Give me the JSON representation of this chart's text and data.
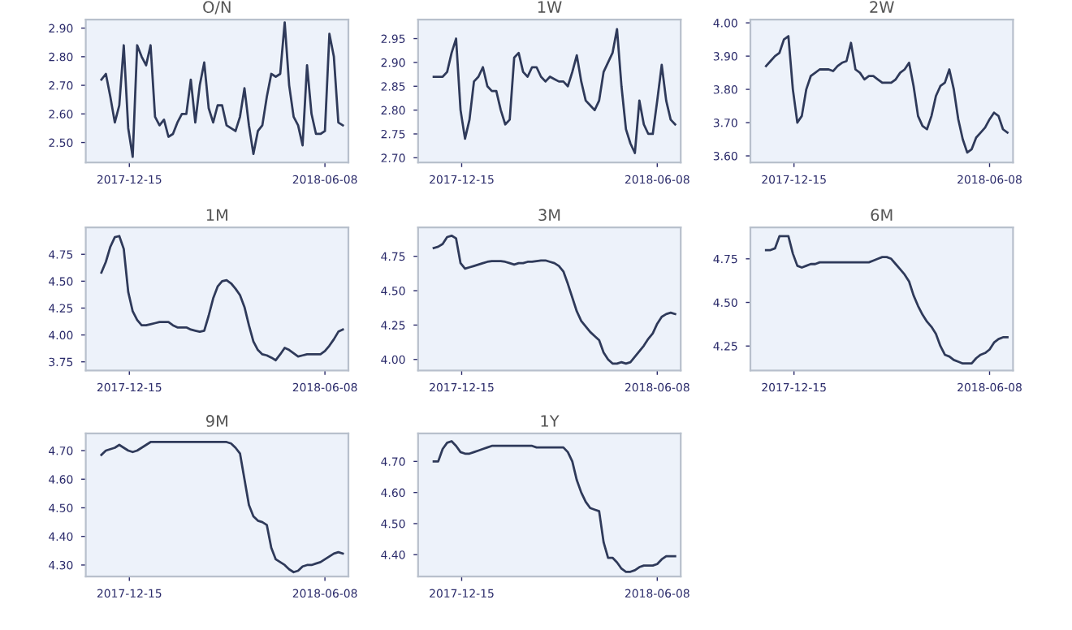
{
  "chart_data": [
    {
      "type": "line",
      "title": "O/N",
      "x": [
        "2017-11-20",
        "2017-11-24",
        "2017-11-28",
        "2017-12-02",
        "2017-12-06",
        "2017-12-10",
        "2017-12-14",
        "2017-12-18",
        "2017-12-22",
        "2017-12-26",
        "2017-12-30",
        "2018-01-03",
        "2018-01-07",
        "2018-01-11",
        "2018-01-15",
        "2018-01-19",
        "2018-01-23",
        "2018-01-27",
        "2018-01-31",
        "2018-02-04",
        "2018-02-08",
        "2018-02-12",
        "2018-02-16",
        "2018-02-20",
        "2018-02-24",
        "2018-02-28",
        "2018-03-04",
        "2018-03-08",
        "2018-03-12",
        "2018-03-16",
        "2018-03-20",
        "2018-03-24",
        "2018-03-28",
        "2018-04-01",
        "2018-04-05",
        "2018-04-09",
        "2018-04-13",
        "2018-04-17",
        "2018-04-21",
        "2018-04-25",
        "2018-04-29",
        "2018-05-03",
        "2018-05-07",
        "2018-05-11",
        "2018-05-15",
        "2018-05-19",
        "2018-05-23",
        "2018-05-27",
        "2018-05-31",
        "2018-06-04",
        "2018-06-08",
        "2018-06-12",
        "2018-06-16",
        "2018-06-20",
        "2018-06-24"
      ],
      "series": [
        {
          "color": "#2f3a5a",
          "values": [
            2.72,
            2.74,
            2.66,
            2.57,
            2.63,
            2.84,
            2.55,
            2.45,
            2.84,
            2.8,
            2.77,
            2.84,
            2.59,
            2.56,
            2.58,
            2.52,
            2.53,
            2.57,
            2.6,
            2.6,
            2.72,
            2.57,
            2.7,
            2.78,
            2.62,
            2.57,
            2.63,
            2.63,
            2.56,
            2.55,
            2.54,
            2.59,
            2.69,
            2.56,
            2.46,
            2.54,
            2.56,
            2.66,
            2.74,
            2.73,
            2.74,
            2.92,
            2.7,
            2.59,
            2.56,
            2.49,
            2.77,
            2.6,
            2.53,
            2.53,
            2.54,
            2.88,
            2.8,
            2.57,
            2.56
          ]
        }
      ],
      "xlim": [
        "2017-11-06",
        "2018-06-29"
      ],
      "xticks": [
        "2017-12-15",
        "2018-06-08"
      ],
      "ylim": [
        2.43,
        2.93
      ],
      "yticks": [
        {
          "value": 2.5,
          "label": "2.50"
        },
        {
          "value": 2.6,
          "label": "2.60"
        },
        {
          "value": 2.7,
          "label": "2.70"
        },
        {
          "value": 2.8,
          "label": "2.80"
        },
        {
          "value": 2.9,
          "label": "2.90"
        }
      ]
    },
    {
      "type": "line",
      "title": "1W",
      "x": [
        "2017-11-20",
        "2017-11-24",
        "2017-11-28",
        "2017-12-02",
        "2017-12-06",
        "2017-12-10",
        "2017-12-14",
        "2017-12-18",
        "2017-12-22",
        "2017-12-26",
        "2017-12-30",
        "2018-01-03",
        "2018-01-07",
        "2018-01-11",
        "2018-01-15",
        "2018-01-19",
        "2018-01-23",
        "2018-01-27",
        "2018-01-31",
        "2018-02-04",
        "2018-02-08",
        "2018-02-12",
        "2018-02-16",
        "2018-02-20",
        "2018-02-24",
        "2018-02-28",
        "2018-03-04",
        "2018-03-08",
        "2018-03-12",
        "2018-03-16",
        "2018-03-20",
        "2018-03-24",
        "2018-03-28",
        "2018-04-01",
        "2018-04-05",
        "2018-04-09",
        "2018-04-13",
        "2018-04-17",
        "2018-04-21",
        "2018-04-25",
        "2018-04-29",
        "2018-05-03",
        "2018-05-07",
        "2018-05-11",
        "2018-05-15",
        "2018-05-19",
        "2018-05-23",
        "2018-05-27",
        "2018-05-31",
        "2018-06-04",
        "2018-06-08",
        "2018-06-12",
        "2018-06-16",
        "2018-06-20",
        "2018-06-24"
      ],
      "series": [
        {
          "color": "#2f3a5a",
          "values": [
            2.87,
            2.87,
            2.87,
            2.88,
            2.92,
            2.95,
            2.8,
            2.74,
            2.78,
            2.86,
            2.87,
            2.89,
            2.85,
            2.84,
            2.84,
            2.8,
            2.77,
            2.78,
            2.91,
            2.92,
            2.88,
            2.87,
            2.89,
            2.89,
            2.87,
            2.86,
            2.87,
            2.865,
            2.86,
            2.86,
            2.85,
            2.88,
            2.915,
            2.86,
            2.82,
            2.81,
            2.8,
            2.82,
            2.88,
            2.9,
            2.92,
            2.97,
            2.85,
            2.76,
            2.73,
            2.71,
            2.82,
            2.77,
            2.75,
            2.75,
            2.82,
            2.895,
            2.82,
            2.78,
            2.77
          ]
        }
      ],
      "xlim": [
        "2017-11-06",
        "2018-06-29"
      ],
      "xticks": [
        "2017-12-15",
        "2018-06-08"
      ],
      "ylim": [
        2.69,
        2.99
      ],
      "yticks": [
        {
          "value": 2.7,
          "label": "2.70"
        },
        2.75,
        {
          "value": 2.8,
          "label": "2.80"
        },
        2.85,
        {
          "value": 2.9,
          "label": "2.90"
        },
        2.95
      ]
    },
    {
      "type": "line",
      "title": "2W",
      "x": [
        "2017-11-20",
        "2017-11-24",
        "2017-11-28",
        "2017-12-02",
        "2017-12-06",
        "2017-12-10",
        "2017-12-14",
        "2017-12-18",
        "2017-12-22",
        "2017-12-26",
        "2017-12-30",
        "2018-01-03",
        "2018-01-07",
        "2018-01-11",
        "2018-01-15",
        "2018-01-19",
        "2018-01-23",
        "2018-01-27",
        "2018-01-31",
        "2018-02-04",
        "2018-02-08",
        "2018-02-12",
        "2018-02-16",
        "2018-02-20",
        "2018-02-24",
        "2018-02-28",
        "2018-03-04",
        "2018-03-08",
        "2018-03-12",
        "2018-03-16",
        "2018-03-20",
        "2018-03-24",
        "2018-03-28",
        "2018-04-01",
        "2018-04-05",
        "2018-04-09",
        "2018-04-13",
        "2018-04-17",
        "2018-04-21",
        "2018-04-25",
        "2018-04-29",
        "2018-05-03",
        "2018-05-07",
        "2018-05-11",
        "2018-05-15",
        "2018-05-19",
        "2018-05-23",
        "2018-05-27",
        "2018-05-31",
        "2018-06-04",
        "2018-06-08",
        "2018-06-12",
        "2018-06-16",
        "2018-06-20",
        "2018-06-24"
      ],
      "series": [
        {
          "color": "#2f3a5a",
          "values": [
            3.87,
            3.885,
            3.9,
            3.91,
            3.95,
            3.96,
            3.8,
            3.7,
            3.72,
            3.8,
            3.84,
            3.85,
            3.86,
            3.86,
            3.86,
            3.855,
            3.87,
            3.88,
            3.885,
            3.94,
            3.86,
            3.85,
            3.83,
            3.84,
            3.84,
            3.83,
            3.82,
            3.82,
            3.82,
            3.83,
            3.85,
            3.86,
            3.88,
            3.81,
            3.72,
            3.69,
            3.68,
            3.72,
            3.78,
            3.81,
            3.82,
            3.86,
            3.8,
            3.71,
            3.65,
            3.61,
            3.62,
            3.655,
            3.67,
            3.685,
            3.71,
            3.73,
            3.72,
            3.68,
            3.67
          ]
        }
      ],
      "xlim": [
        "2017-11-06",
        "2018-06-29"
      ],
      "xticks": [
        "2017-12-15",
        "2018-06-08"
      ],
      "ylim": [
        3.58,
        4.01
      ],
      "yticks": [
        {
          "value": 3.6,
          "label": "3.60"
        },
        {
          "value": 3.7,
          "label": "3.70"
        },
        {
          "value": 3.8,
          "label": "3.80"
        },
        {
          "value": 3.9,
          "label": "3.90"
        },
        {
          "value": 4.0,
          "label": "4.00"
        }
      ]
    },
    {
      "type": "line",
      "title": "1M",
      "x": [
        "2017-11-20",
        "2017-11-24",
        "2017-11-28",
        "2017-12-02",
        "2017-12-06",
        "2017-12-10",
        "2017-12-14",
        "2017-12-18",
        "2017-12-22",
        "2017-12-26",
        "2017-12-30",
        "2018-01-03",
        "2018-01-07",
        "2018-01-11",
        "2018-01-15",
        "2018-01-19",
        "2018-01-23",
        "2018-01-27",
        "2018-01-31",
        "2018-02-04",
        "2018-02-08",
        "2018-02-12",
        "2018-02-16",
        "2018-02-20",
        "2018-02-24",
        "2018-02-28",
        "2018-03-04",
        "2018-03-08",
        "2018-03-12",
        "2018-03-16",
        "2018-03-20",
        "2018-03-24",
        "2018-03-28",
        "2018-04-01",
        "2018-04-05",
        "2018-04-09",
        "2018-04-13",
        "2018-04-17",
        "2018-04-21",
        "2018-04-25",
        "2018-04-29",
        "2018-05-03",
        "2018-05-07",
        "2018-05-11",
        "2018-05-15",
        "2018-05-19",
        "2018-05-23",
        "2018-05-27",
        "2018-05-31",
        "2018-06-04",
        "2018-06-08",
        "2018-06-12",
        "2018-06-16",
        "2018-06-20",
        "2018-06-24"
      ],
      "series": [
        {
          "color": "#2f3a5a",
          "values": [
            4.58,
            4.68,
            4.82,
            4.91,
            4.92,
            4.8,
            4.4,
            4.22,
            4.14,
            4.09,
            4.09,
            4.1,
            4.11,
            4.12,
            4.12,
            4.12,
            4.09,
            4.07,
            4.07,
            4.07,
            4.05,
            4.04,
            4.03,
            4.04,
            4.18,
            4.34,
            4.45,
            4.5,
            4.51,
            4.48,
            4.43,
            4.37,
            4.26,
            4.09,
            3.94,
            3.86,
            3.82,
            3.81,
            3.79,
            3.765,
            3.82,
            3.88,
            3.86,
            3.83,
            3.8,
            3.81,
            3.82,
            3.82,
            3.82,
            3.82,
            3.85,
            3.9,
            3.96,
            4.03,
            4.05
          ]
        }
      ],
      "xlim": [
        "2017-11-06",
        "2018-06-29"
      ],
      "xticks": [
        "2017-12-15",
        "2018-06-08"
      ],
      "ylim": [
        3.67,
        5.0
      ],
      "yticks": [
        3.75,
        {
          "value": 4.0,
          "label": "4.00"
        },
        4.25,
        {
          "value": 4.5,
          "label": "4.50"
        },
        4.75
      ]
    },
    {
      "type": "line",
      "title": "3M",
      "x": [
        "2017-11-20",
        "2017-11-24",
        "2017-11-28",
        "2017-12-02",
        "2017-12-06",
        "2017-12-10",
        "2017-12-14",
        "2017-12-18",
        "2017-12-22",
        "2017-12-26",
        "2017-12-30",
        "2018-01-03",
        "2018-01-07",
        "2018-01-11",
        "2018-01-15",
        "2018-01-19",
        "2018-01-23",
        "2018-01-27",
        "2018-01-31",
        "2018-02-04",
        "2018-02-08",
        "2018-02-12",
        "2018-02-16",
        "2018-02-20",
        "2018-02-24",
        "2018-02-28",
        "2018-03-04",
        "2018-03-08",
        "2018-03-12",
        "2018-03-16",
        "2018-03-20",
        "2018-03-24",
        "2018-03-28",
        "2018-04-01",
        "2018-04-05",
        "2018-04-09",
        "2018-04-13",
        "2018-04-17",
        "2018-04-21",
        "2018-04-25",
        "2018-04-29",
        "2018-05-03",
        "2018-05-07",
        "2018-05-11",
        "2018-05-15",
        "2018-05-19",
        "2018-05-23",
        "2018-05-27",
        "2018-05-31",
        "2018-06-04",
        "2018-06-08",
        "2018-06-12",
        "2018-06-16",
        "2018-06-20",
        "2018-06-24"
      ],
      "series": [
        {
          "color": "#2f3a5a",
          "values": [
            4.81,
            4.82,
            4.84,
            4.89,
            4.9,
            4.88,
            4.7,
            4.66,
            4.67,
            4.68,
            4.69,
            4.7,
            4.71,
            4.715,
            4.715,
            4.715,
            4.71,
            4.7,
            4.69,
            4.7,
            4.7,
            4.71,
            4.71,
            4.715,
            4.72,
            4.72,
            4.71,
            4.7,
            4.68,
            4.64,
            4.55,
            4.45,
            4.35,
            4.28,
            4.24,
            4.2,
            4.17,
            4.14,
            4.05,
            4.0,
            3.97,
            3.97,
            3.98,
            3.97,
            3.98,
            4.02,
            4.06,
            4.1,
            4.15,
            4.19,
            4.26,
            4.31,
            4.33,
            4.34,
            4.33
          ]
        }
      ],
      "xlim": [
        "2017-11-06",
        "2018-06-29"
      ],
      "xticks": [
        "2017-12-15",
        "2018-06-08"
      ],
      "ylim": [
        3.92,
        4.96
      ],
      "yticks": [
        {
          "value": 4.0,
          "label": "4.00"
        },
        4.25,
        {
          "value": 4.5,
          "label": "4.50"
        },
        4.75
      ]
    },
    {
      "type": "line",
      "title": "6M",
      "x": [
        "2017-11-20",
        "2017-11-24",
        "2017-11-28",
        "2017-12-02",
        "2017-12-06",
        "2017-12-10",
        "2017-12-14",
        "2017-12-18",
        "2017-12-22",
        "2017-12-26",
        "2017-12-30",
        "2018-01-03",
        "2018-01-07",
        "2018-01-11",
        "2018-01-15",
        "2018-01-19",
        "2018-01-23",
        "2018-01-27",
        "2018-01-31",
        "2018-02-04",
        "2018-02-08",
        "2018-02-12",
        "2018-02-16",
        "2018-02-20",
        "2018-02-24",
        "2018-02-28",
        "2018-03-04",
        "2018-03-08",
        "2018-03-12",
        "2018-03-16",
        "2018-03-20",
        "2018-03-24",
        "2018-03-28",
        "2018-04-01",
        "2018-04-05",
        "2018-04-09",
        "2018-04-13",
        "2018-04-17",
        "2018-04-21",
        "2018-04-25",
        "2018-04-29",
        "2018-05-03",
        "2018-05-07",
        "2018-05-11",
        "2018-05-15",
        "2018-05-19",
        "2018-05-23",
        "2018-05-27",
        "2018-05-31",
        "2018-06-04",
        "2018-06-08",
        "2018-06-12",
        "2018-06-16",
        "2018-06-20",
        "2018-06-24"
      ],
      "series": [
        {
          "color": "#2f3a5a",
          "values": [
            4.8,
            4.8,
            4.81,
            4.88,
            4.88,
            4.88,
            4.78,
            4.71,
            4.7,
            4.71,
            4.72,
            4.72,
            4.73,
            4.73,
            4.73,
            4.73,
            4.73,
            4.73,
            4.73,
            4.73,
            4.73,
            4.73,
            4.73,
            4.73,
            4.74,
            4.75,
            4.76,
            4.76,
            4.75,
            4.72,
            4.69,
            4.66,
            4.62,
            4.54,
            4.48,
            4.43,
            4.39,
            4.36,
            4.32,
            4.25,
            4.2,
            4.19,
            4.17,
            4.16,
            4.15,
            4.15,
            4.15,
            4.18,
            4.2,
            4.21,
            4.23,
            4.27,
            4.29,
            4.3,
            4.3
          ]
        }
      ],
      "xlim": [
        "2017-11-06",
        "2018-06-29"
      ],
      "xticks": [
        "2017-12-15",
        "2018-06-08"
      ],
      "ylim": [
        4.11,
        4.93
      ],
      "yticks": [
        4.25,
        {
          "value": 4.5,
          "label": "4.50"
        },
        4.75
      ]
    },
    {
      "type": "line",
      "title": "9M",
      "x": [
        "2017-11-20",
        "2017-11-24",
        "2017-11-28",
        "2017-12-02",
        "2017-12-06",
        "2017-12-10",
        "2017-12-14",
        "2017-12-18",
        "2017-12-22",
        "2017-12-26",
        "2017-12-30",
        "2018-01-03",
        "2018-01-07",
        "2018-01-11",
        "2018-01-15",
        "2018-01-19",
        "2018-01-23",
        "2018-01-27",
        "2018-01-31",
        "2018-02-04",
        "2018-02-08",
        "2018-02-12",
        "2018-02-16",
        "2018-02-20",
        "2018-02-24",
        "2018-02-28",
        "2018-03-04",
        "2018-03-08",
        "2018-03-12",
        "2018-03-16",
        "2018-03-20",
        "2018-03-24",
        "2018-03-28",
        "2018-04-01",
        "2018-04-05",
        "2018-04-09",
        "2018-04-13",
        "2018-04-17",
        "2018-04-21",
        "2018-04-25",
        "2018-04-29",
        "2018-05-03",
        "2018-05-07",
        "2018-05-11",
        "2018-05-15",
        "2018-05-19",
        "2018-05-23",
        "2018-05-27",
        "2018-05-31",
        "2018-06-04",
        "2018-06-08",
        "2018-06-12",
        "2018-06-16",
        "2018-06-20",
        "2018-06-24"
      ],
      "series": [
        {
          "color": "#2f3a5a",
          "values": [
            4.685,
            4.7,
            4.705,
            4.71,
            4.72,
            4.71,
            4.7,
            4.695,
            4.7,
            4.71,
            4.72,
            4.73,
            4.73,
            4.73,
            4.73,
            4.73,
            4.73,
            4.73,
            4.73,
            4.73,
            4.73,
            4.73,
            4.73,
            4.73,
            4.73,
            4.73,
            4.73,
            4.73,
            4.73,
            4.725,
            4.71,
            4.69,
            4.6,
            4.51,
            4.47,
            4.455,
            4.45,
            4.44,
            4.36,
            4.32,
            4.31,
            4.3,
            4.285,
            4.275,
            4.28,
            4.295,
            4.3,
            4.3,
            4.305,
            4.31,
            4.32,
            4.33,
            4.34,
            4.345,
            4.34
          ]
        }
      ],
      "xlim": [
        "2017-11-06",
        "2018-06-29"
      ],
      "xticks": [
        "2017-12-15",
        "2018-06-08"
      ],
      "ylim": [
        4.26,
        4.76
      ],
      "yticks": [
        {
          "value": 4.3,
          "label": "4.30"
        },
        {
          "value": 4.4,
          "label": "4.40"
        },
        {
          "value": 4.5,
          "label": "4.50"
        },
        {
          "value": 4.6,
          "label": "4.60"
        },
        {
          "value": 4.7,
          "label": "4.70"
        }
      ]
    },
    {
      "type": "line",
      "title": "1Y",
      "x": [
        "2017-11-20",
        "2017-11-24",
        "2017-11-28",
        "2017-12-02",
        "2017-12-06",
        "2017-12-10",
        "2017-12-14",
        "2017-12-18",
        "2017-12-22",
        "2017-12-26",
        "2017-12-30",
        "2018-01-03",
        "2018-01-07",
        "2018-01-11",
        "2018-01-15",
        "2018-01-19",
        "2018-01-23",
        "2018-01-27",
        "2018-01-31",
        "2018-02-04",
        "2018-02-08",
        "2018-02-12",
        "2018-02-16",
        "2018-02-20",
        "2018-02-24",
        "2018-02-28",
        "2018-03-04",
        "2018-03-08",
        "2018-03-12",
        "2018-03-16",
        "2018-03-20",
        "2018-03-24",
        "2018-03-28",
        "2018-04-01",
        "2018-04-05",
        "2018-04-09",
        "2018-04-13",
        "2018-04-17",
        "2018-04-21",
        "2018-04-25",
        "2018-04-29",
        "2018-05-03",
        "2018-05-07",
        "2018-05-11",
        "2018-05-15",
        "2018-05-19",
        "2018-05-23",
        "2018-05-27",
        "2018-05-31",
        "2018-06-04",
        "2018-06-08",
        "2018-06-12",
        "2018-06-16",
        "2018-06-20",
        "2018-06-24"
      ],
      "series": [
        {
          "color": "#2f3a5a",
          "values": [
            4.7,
            4.7,
            4.74,
            4.76,
            4.765,
            4.75,
            4.73,
            4.725,
            4.725,
            4.73,
            4.735,
            4.74,
            4.745,
            4.75,
            4.75,
            4.75,
            4.75,
            4.75,
            4.75,
            4.75,
            4.75,
            4.75,
            4.75,
            4.745,
            4.745,
            4.745,
            4.745,
            4.745,
            4.745,
            4.745,
            4.73,
            4.7,
            4.64,
            4.6,
            4.57,
            4.55,
            4.545,
            4.54,
            4.44,
            4.39,
            4.39,
            4.375,
            4.355,
            4.345,
            4.345,
            4.35,
            4.36,
            4.365,
            4.365,
            4.365,
            4.37,
            4.385,
            4.395,
            4.395,
            4.395
          ]
        }
      ],
      "xlim": [
        "2017-11-06",
        "2018-06-29"
      ],
      "xticks": [
        "2017-12-15",
        "2018-06-08"
      ],
      "ylim": [
        4.33,
        4.79
      ],
      "yticks": [
        {
          "value": 4.4,
          "label": "4.40"
        },
        {
          "value": 4.5,
          "label": "4.50"
        },
        {
          "value": 4.6,
          "label": "4.60"
        },
        {
          "value": 4.7,
          "label": "4.70"
        }
      ]
    }
  ]
}
